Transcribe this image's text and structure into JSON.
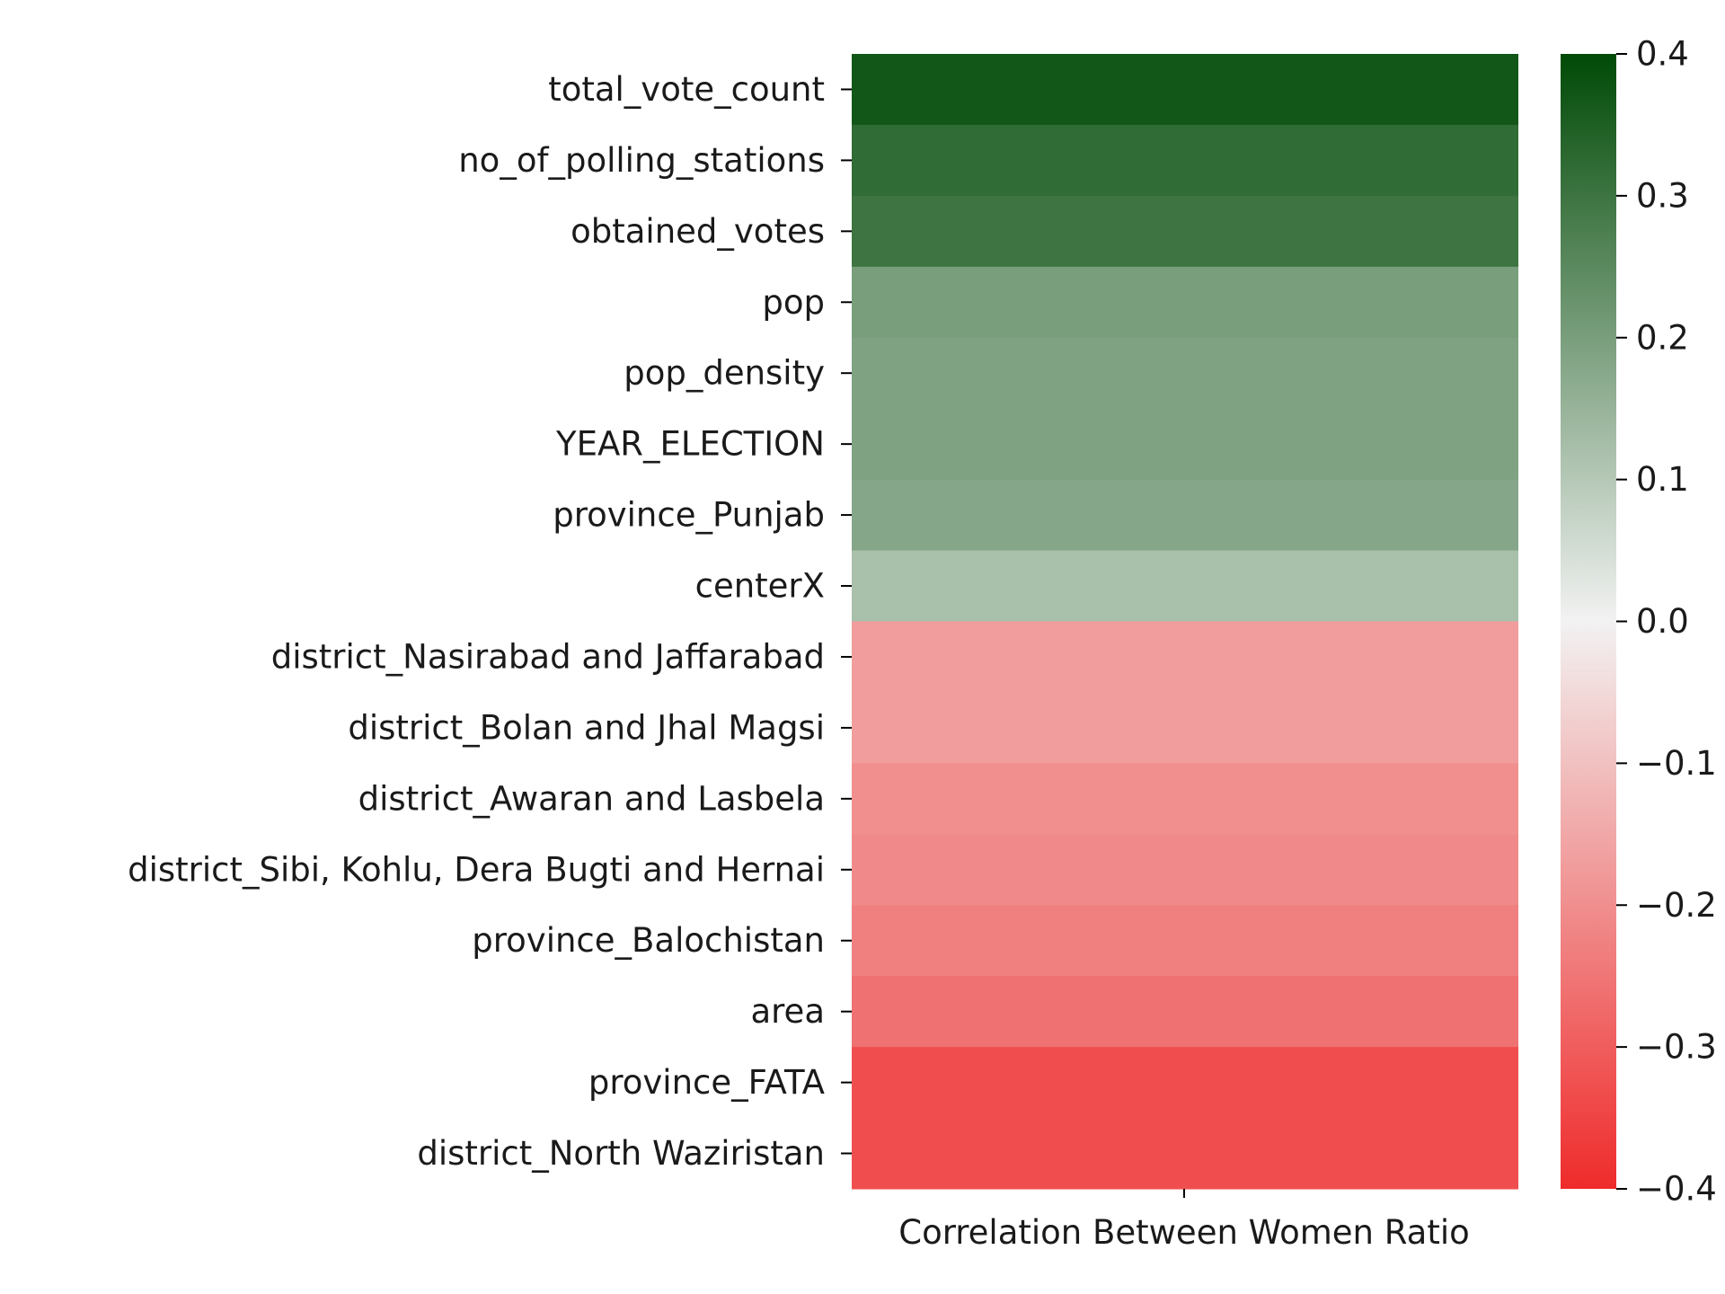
{
  "chart_data": {
    "type": "heatmap",
    "title": "",
    "xlabel": "",
    "ylabel": "",
    "columns": [
      "Correlation Between Women Ratio"
    ],
    "rows": [
      "total_vote_count",
      "no_of_polling_stations",
      "obtained_votes",
      "pop",
      "pop_density",
      "YEAR_ELECTION",
      "province_Punjab",
      "centerX",
      "district_Nasirabad and Jaffarabad",
      "district_Bolan and Jhal Magsi",
      "district_Awaran and Lasbela",
      "district_Sibi, Kohlu, Dera Bugti and Hernai",
      "province_Balochistan",
      "area",
      "province_FATA",
      "district_North Waziristan"
    ],
    "values": [
      0.37,
      0.32,
      0.3,
      0.2,
      0.19,
      0.19,
      0.18,
      0.12,
      -0.17,
      -0.17,
      -0.2,
      -0.21,
      -0.23,
      -0.26,
      -0.33,
      -0.33
    ],
    "vmin": -0.4,
    "vmax": 0.4,
    "colorbar_ticks": [
      0.4,
      0.3,
      0.2,
      0.1,
      0.0,
      -0.1,
      -0.2,
      -0.3,
      -0.4
    ],
    "colorbar_tick_labels": [
      "0.4",
      "0.3",
      "0.2",
      "0.1",
      "0.0",
      "−0.1",
      "−0.2",
      "−0.3",
      "−0.4"
    ],
    "colormap": {
      "negative_end": "#ef2b2b",
      "center": "#f2f2f2",
      "positive_end": "#004a06"
    },
    "legend": "colorbar-right",
    "grid": false
  }
}
